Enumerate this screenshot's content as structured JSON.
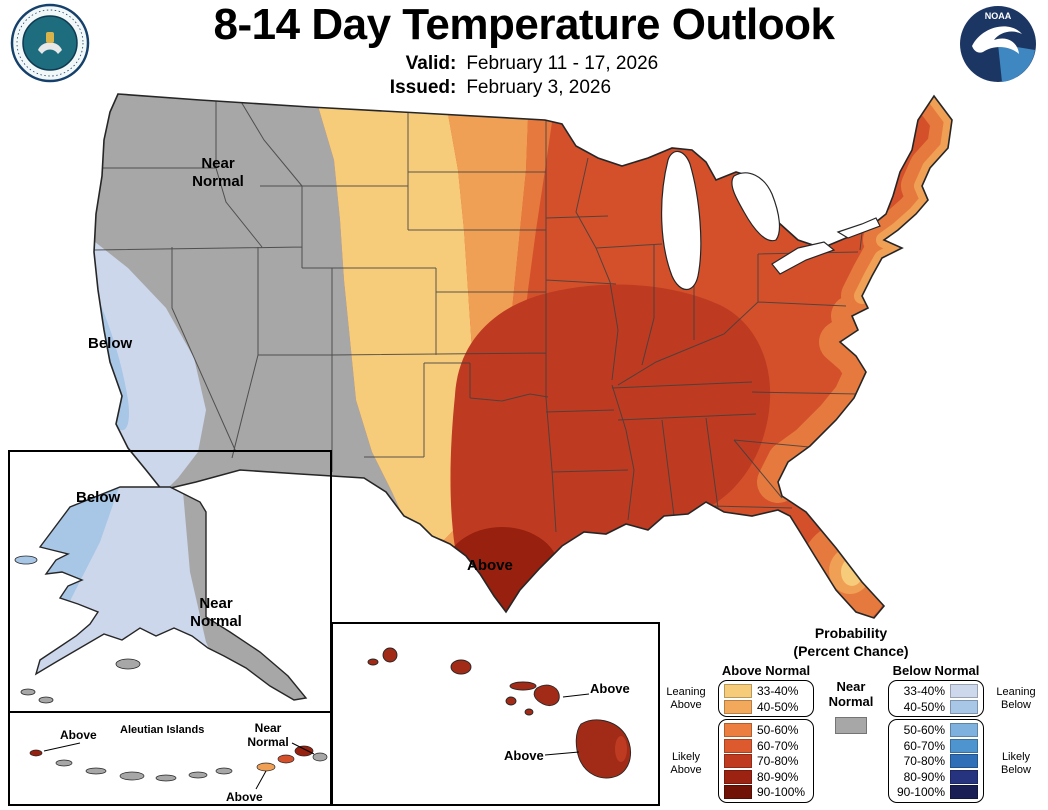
{
  "header": {
    "title": "8-14 Day Temperature Outlook",
    "valid_label": "Valid:",
    "valid_value": "February 11 - 17, 2026",
    "issued_label": "Issued:",
    "issued_value": "February 3, 2026"
  },
  "logos": {
    "noaa_text": "NOAA"
  },
  "map_labels": {
    "conus_near_normal": "Near Normal",
    "conus_below": "Below",
    "conus_above": "Above",
    "alaska_below": "Below",
    "alaska_near_normal": "Near Normal",
    "aleutian_above_west": "Above",
    "aleutian_islands": "Aleutian Islands",
    "aleutian_near_normal": "Near Normal",
    "aleutian_above_east": "Above",
    "hawaii_above_maui": "Above",
    "hawaii_above_big_island": "Above"
  },
  "legend": {
    "title_line1": "Probability",
    "title_line2": "(Percent Chance)",
    "above_header": "Above Normal",
    "below_header": "Below Normal",
    "near_normal_label": "Near Normal",
    "near_normal_color": "#A7A7A7",
    "leaning_above": "Leaning Above",
    "likely_above": "Likely Above",
    "leaning_below": "Leaning Below",
    "likely_below": "Likely Below",
    "above_rows": [
      {
        "range": "33-40%",
        "color": "#F6CC7B"
      },
      {
        "range": "40-50%",
        "color": "#F2A95B"
      },
      {
        "range": "50-60%",
        "color": "#EC7E3F"
      },
      {
        "range": "60-70%",
        "color": "#DD5A2E"
      },
      {
        "range": "70-80%",
        "color": "#C03A20"
      },
      {
        "range": "80-90%",
        "color": "#9C2312"
      },
      {
        "range": "90-100%",
        "color": "#701205"
      }
    ],
    "below_rows": [
      {
        "range": "33-40%",
        "color": "#CDD8EC"
      },
      {
        "range": "40-50%",
        "color": "#A8C6E6"
      },
      {
        "range": "50-60%",
        "color": "#7EB1DD"
      },
      {
        "range": "60-70%",
        "color": "#4E94CE"
      },
      {
        "range": "70-80%",
        "color": "#2E6FB7"
      },
      {
        "range": "80-90%",
        "color": "#26337F"
      },
      {
        "range": "90-100%",
        "color": "#191F54"
      }
    ]
  },
  "map_colors": {
    "near_normal": "#A7A7A7",
    "above_33_40": "#F6CC7B",
    "above_40_50": "#F0A055",
    "above_50_60": "#E67A3E",
    "above_60_70": "#D4502B",
    "above_70_80": "#BE3B22",
    "above_80_90": "#97200F",
    "below_33_40": "#CCD7EC",
    "below_40_50": "#A8C6E6",
    "hawaii_islands": "#A12B16",
    "outline": "#262626",
    "state_border": "#404040",
    "water": "#FFFFFF"
  }
}
